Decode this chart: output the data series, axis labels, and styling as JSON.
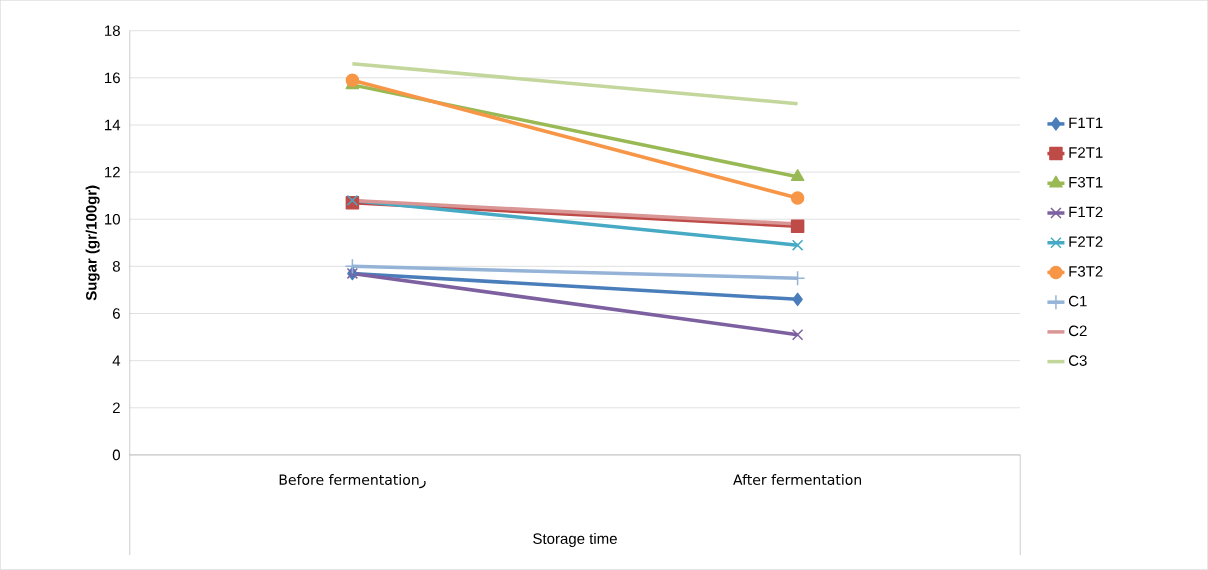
{
  "chart_data": {
    "type": "line",
    "xlabel": "Storage time",
    "ylabel": "Sugar (gr/100gr)",
    "categories": [
      "Before fermentationر",
      "After fermentation"
    ],
    "ylim": [
      0,
      18
    ],
    "yticks": [
      0,
      2,
      4,
      6,
      8,
      10,
      12,
      14,
      16,
      18
    ],
    "grid": "y",
    "legend": "right",
    "line_style": "solid",
    "series": [
      {
        "name": "F1T1",
        "color": "#4a7ebb",
        "marker": "diamond",
        "values": [
          7.7,
          6.6
        ]
      },
      {
        "name": "F2T1",
        "color": "#be4b48",
        "marker": "square",
        "values": [
          10.7,
          9.7
        ]
      },
      {
        "name": "F3T1",
        "color": "#98b954",
        "marker": "triangle",
        "values": [
          15.7,
          11.8
        ]
      },
      {
        "name": "F1T2",
        "color": "#7d60a0",
        "marker": "cross",
        "values": [
          7.7,
          5.1
        ]
      },
      {
        "name": "F2T2",
        "color": "#46aac5",
        "marker": "cross",
        "values": [
          10.8,
          8.9
        ]
      },
      {
        "name": "F3T2",
        "color": "#f79646",
        "marker": "circle",
        "values": [
          15.9,
          10.9
        ]
      },
      {
        "name": "C1",
        "color": "#95b3d7",
        "marker": "plus",
        "values": [
          8.0,
          7.5
        ]
      },
      {
        "name": "C2",
        "color": "#d99694",
        "marker": "none",
        "values": [
          10.8,
          9.8
        ]
      },
      {
        "name": "C3",
        "color": "#c3d69b",
        "marker": "none",
        "values": [
          16.6,
          14.9
        ]
      }
    ]
  }
}
